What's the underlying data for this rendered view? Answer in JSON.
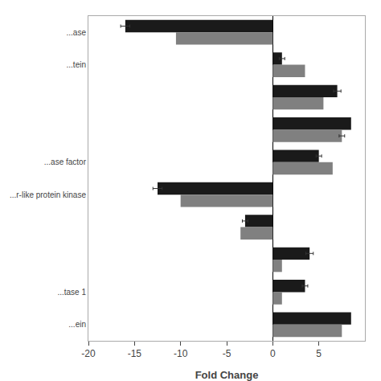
{
  "chart_data": {
    "type": "bar",
    "orientation": "horizontal",
    "categories": [
      "...ase",
      "...tein",
      null,
      null,
      "...ase factor",
      "...r-like protein kinase",
      null,
      null,
      "...tase 1",
      "...ein"
    ],
    "series": [
      {
        "color": "#1a1a1a",
        "values": [
          -16.0,
          1.0,
          7.0,
          8.5,
          5.0,
          -12.5,
          -3.0,
          4.0,
          3.5,
          8.5
        ],
        "errors": [
          0.5,
          0.3,
          0.4,
          0.0,
          0.3,
          0.5,
          0.3,
          0.4,
          0.3,
          0.0
        ]
      },
      {
        "color": "#808080",
        "values": [
          -10.5,
          3.5,
          5.5,
          7.5,
          6.5,
          -10.0,
          -3.5,
          1.0,
          1.0,
          7.5
        ],
        "errors": [
          0.0,
          0.0,
          0.0,
          0.3,
          0.0,
          0.0,
          0.0,
          0.0,
          0.0,
          0.0
        ]
      }
    ],
    "xlabel": "Fold Change",
    "xlim": [
      -20,
      10
    ],
    "xticks": [
      -20,
      -15,
      -10,
      -5,
      0,
      5
    ],
    "grid": false
  }
}
